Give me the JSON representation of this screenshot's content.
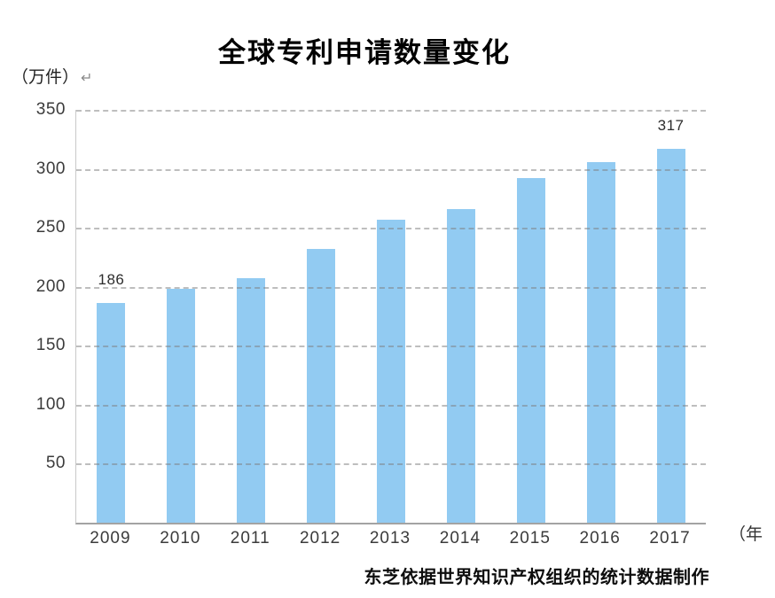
{
  "title": "全球专利申请数量变化",
  "y_unit_label": "（万件）",
  "paragraph_mark": "↵",
  "x_unit_label": "（年",
  "source_note": "东芝依据世界知识产权组织的统计数据制作",
  "colors": {
    "bar": "#92cbf2",
    "gridline": "#7d7d7d",
    "axis_baseline": "#a3a3a3",
    "y_axis_line": "#c9c9c9",
    "tick_text": "#3b3b3b",
    "title_text": "#000000"
  },
  "chart_data": {
    "type": "bar",
    "title": "全球专利申请数量变化",
    "ylabel": "（万件）",
    "xlabel": "（年",
    "categories": [
      "2009",
      "2010",
      "2011",
      "2012",
      "2013",
      "2014",
      "2015",
      "2016",
      "2017"
    ],
    "values": [
      186,
      198,
      207,
      232,
      257,
      266,
      292,
      306,
      317
    ],
    "annotations": [
      {
        "category": "2009",
        "text": "186"
      },
      {
        "category": "2017",
        "text": "317"
      }
    ],
    "ylim": [
      0,
      350
    ],
    "yticks": [
      350,
      300,
      250,
      200,
      150,
      100,
      50
    ],
    "grid": "horizontal-dashed",
    "legend": "none",
    "source": "东芝依据世界知识产权组织的统计数据制作"
  }
}
